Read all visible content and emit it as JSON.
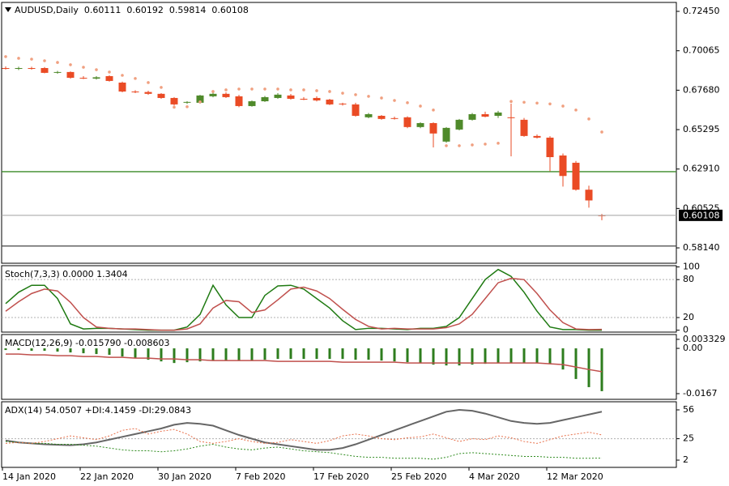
{
  "chart_data": [
    {
      "type": "candlestick",
      "title": "AUDUSD,Daily",
      "categories": [
        "14 Jan 2020",
        null,
        null,
        null,
        null,
        null,
        "22 Jan 2020",
        null,
        null,
        null,
        null,
        null,
        "30 Jan 2020",
        null,
        null,
        null,
        null,
        null,
        "7 Feb 2020",
        null,
        null,
        null,
        null,
        null,
        "17 Feb 2020",
        null,
        null,
        null,
        null,
        null,
        "25 Feb 2020",
        null,
        null,
        null,
        null,
        null,
        "4 Mar 2020",
        null,
        null,
        null,
        null,
        null,
        "12 Mar 2020",
        null,
        null,
        null,
        null
      ],
      "open": [
        0.6902,
        0.69,
        0.6902,
        0.6902,
        0.6876,
        0.6878,
        0.6843,
        0.6838,
        0.6853,
        0.6814,
        0.676,
        0.6757,
        0.6746,
        0.6721,
        0.6692,
        0.6692,
        0.6731,
        0.6746,
        0.6731,
        0.6672,
        0.6701,
        0.6721,
        0.6736,
        0.6716,
        0.6721,
        0.6711,
        0.6687,
        0.6682,
        0.6604,
        0.6613,
        0.6599,
        0.6604,
        0.6545,
        0.6569,
        0.6457,
        0.653,
        0.6589,
        0.6623,
        0.6613,
        0.6604,
        0.6589,
        0.6491,
        0.6481,
        0.6373,
        0.6329,
        0.6166,
        0.60111
      ],
      "high": [
        0.6912,
        0.691,
        0.691,
        0.6908,
        0.6885,
        0.6882,
        0.6853,
        0.6853,
        0.6858,
        0.682,
        0.6768,
        0.6765,
        0.675,
        0.6726,
        0.6702,
        0.674,
        0.676,
        0.6755,
        0.674,
        0.6706,
        0.6733,
        0.675,
        0.6745,
        0.6726,
        0.6731,
        0.6716,
        0.6692,
        0.6692,
        0.663,
        0.6618,
        0.6608,
        0.661,
        0.6574,
        0.6574,
        0.6545,
        0.6594,
        0.663,
        0.6638,
        0.6643,
        0.6687,
        0.66,
        0.65,
        0.649,
        0.6385,
        0.634,
        0.619,
        0.60192
      ],
      "low": [
        0.6893,
        0.689,
        0.6892,
        0.687,
        0.6868,
        0.6838,
        0.6835,
        0.6832,
        0.682,
        0.6755,
        0.675,
        0.674,
        0.6716,
        0.6675,
        0.6685,
        0.6687,
        0.6725,
        0.6721,
        0.6665,
        0.6668,
        0.6697,
        0.6716,
        0.6711,
        0.6708,
        0.67,
        0.6678,
        0.6675,
        0.6608,
        0.6598,
        0.6589,
        0.659,
        0.6538,
        0.6538,
        0.6422,
        0.645,
        0.6525,
        0.6584,
        0.6604,
        0.66,
        0.6368,
        0.6486,
        0.6476,
        0.6278,
        0.6185,
        0.616,
        0.6057,
        0.59814
      ],
      "close": [
        0.69,
        0.6902,
        0.6899,
        0.6873,
        0.6878,
        0.6843,
        0.6841,
        0.6846,
        0.6824,
        0.676,
        0.6757,
        0.6746,
        0.6721,
        0.6682,
        0.6697,
        0.6736,
        0.6746,
        0.6726,
        0.6672,
        0.6701,
        0.6726,
        0.6741,
        0.6716,
        0.6714,
        0.6706,
        0.6682,
        0.6684,
        0.6613,
        0.6623,
        0.6594,
        0.6596,
        0.6545,
        0.6569,
        0.6506,
        0.654,
        0.6589,
        0.6623,
        0.6608,
        0.6633,
        0.6599,
        0.6491,
        0.6481,
        0.6363,
        0.6249,
        0.6166,
        0.6101,
        0.60108
      ],
      "sar": [
        0.6971,
        0.6961,
        0.6956,
        0.6946,
        0.6936,
        0.6922,
        0.6907,
        0.6892,
        0.6878,
        0.6858,
        0.6839,
        0.6814,
        0.6785,
        0.6665,
        0.6668,
        0.6697,
        0.676,
        0.677,
        0.6775,
        0.6775,
        0.6775,
        0.6775,
        0.677,
        0.677,
        0.6765,
        0.676,
        0.675,
        0.6741,
        0.6731,
        0.6721,
        0.6706,
        0.6692,
        0.6672,
        0.6648,
        0.6432,
        0.6432,
        0.6437,
        0.6442,
        0.6447,
        0.67,
        0.6695,
        0.669,
        0.6685,
        0.6672,
        0.6648,
        0.6594,
        0.6515
      ],
      "up_color": "#4f8a2b",
      "down_color": "#ea4b25",
      "sar_color": "#f0a080",
      "hlines": [
        {
          "value": 0.6275,
          "color": "#3a8a28"
        },
        {
          "value": 0.5825,
          "color": "#444444"
        }
      ],
      "ylim": [
        0.5721,
        0.7299
      ],
      "yticks": [
        {
          "value": 0.7245,
          "label": "0.72450"
        },
        {
          "value": 0.70065,
          "label": "0.70065"
        },
        {
          "value": 0.6768,
          "label": "0.67680"
        },
        {
          "value": 0.65295,
          "label": "0.65295"
        },
        {
          "value": 0.6291,
          "label": "0.62910"
        },
        {
          "value": 0.60525,
          "label": "0.60525"
        },
        {
          "value": 0.5814,
          "label": "0.58140"
        }
      ]
    },
    {
      "type": "line",
      "title": "Stoch(7,3,3) 0.0000 1.3404",
      "series": [
        {
          "color": "#1f7a12",
          "width": 1.5,
          "dotted": false,
          "values": [
            42,
            60,
            71,
            71,
            50,
            10,
            2,
            3,
            3,
            2,
            1,
            0,
            0,
            0,
            5,
            25,
            71,
            40,
            20,
            20,
            55,
            70,
            71,
            65,
            50,
            35,
            15,
            1,
            3,
            3,
            2,
            1,
            3,
            3,
            6,
            20,
            50,
            80,
            96,
            85,
            60,
            30,
            5,
            1,
            1,
            0,
            0
          ]
        },
        {
          "color": "#c0504d",
          "width": 1.5,
          "dotted": false,
          "values": [
            30,
            45,
            58,
            65,
            62,
            44,
            20,
            5,
            3,
            2,
            2,
            1,
            0,
            0,
            2,
            10,
            35,
            47,
            45,
            28,
            32,
            48,
            65,
            68,
            62,
            50,
            33,
            17,
            6,
            2,
            3,
            2,
            2,
            2,
            4,
            10,
            25,
            50,
            75,
            82,
            80,
            58,
            32,
            12,
            2,
            1,
            1.3404
          ]
        }
      ],
      "levels": [
        80,
        20
      ],
      "ylim": [
        -3,
        102
      ],
      "yticks": [
        100,
        80,
        20,
        0
      ]
    },
    {
      "type": "bar",
      "title": "MACD(12,26,9) -0.015790 -0.008603",
      "series": [
        {
          "type": "bar",
          "color": "#2e7d1e",
          "values": [
            -0.0006,
            -0.0006,
            -0.0009,
            -0.0009,
            -0.0012,
            -0.0015,
            -0.0018,
            -0.0021,
            -0.0024,
            -0.003,
            -0.0036,
            -0.0042,
            -0.0048,
            -0.0054,
            -0.0051,
            -0.0048,
            -0.0045,
            -0.0045,
            -0.0045,
            -0.0045,
            -0.0042,
            -0.0039,
            -0.0039,
            -0.0039,
            -0.0039,
            -0.0039,
            -0.0039,
            -0.0042,
            -0.0042,
            -0.0045,
            -0.0048,
            -0.0051,
            -0.0054,
            -0.006,
            -0.0063,
            -0.0063,
            -0.006,
            -0.0057,
            -0.0054,
            -0.0054,
            -0.0054,
            -0.0054,
            -0.0057,
            -0.0078,
            -0.0113,
            -0.0143,
            -0.01579
          ]
        },
        {
          "type": "line",
          "color": "#c0504d",
          "values": [
            -0.0021,
            -0.0021,
            -0.0024,
            -0.0024,
            -0.0027,
            -0.0027,
            -0.003,
            -0.003,
            -0.0033,
            -0.0033,
            -0.0036,
            -0.0036,
            -0.0039,
            -0.0039,
            -0.0042,
            -0.0042,
            -0.0045,
            -0.0045,
            -0.0045,
            -0.0045,
            -0.0045,
            -0.0048,
            -0.0048,
            -0.0048,
            -0.0048,
            -0.0048,
            -0.0051,
            -0.0051,
            -0.0051,
            -0.0051,
            -0.0051,
            -0.0054,
            -0.0054,
            -0.0054,
            -0.0054,
            -0.0054,
            -0.0054,
            -0.0054,
            -0.0054,
            -0.0054,
            -0.0054,
            -0.0054,
            -0.0057,
            -0.006,
            -0.0069,
            -0.0078,
            -0.008603
          ]
        }
      ],
      "ylim": [
        -0.0188,
        0.0051
      ],
      "yticks": [
        0.003329,
        {
          "value": 0,
          "label": "0.00"
        },
        -0.0167
      ]
    },
    {
      "type": "line",
      "title": "ADX(14) 54.0507 +DI:4.1459 -DI:29.0843",
      "series": [
        {
          "color": "#666666",
          "width": 2,
          "dotted": false,
          "values": [
            23,
            21,
            20,
            19,
            18.5,
            18,
            19,
            21,
            24,
            27,
            30,
            33,
            36,
            40,
            42,
            41,
            39,
            34,
            29,
            25,
            21,
            19,
            17,
            15,
            13,
            13,
            15,
            19,
            24,
            29,
            34,
            39,
            44,
            49,
            54,
            56,
            55,
            52,
            48,
            44,
            42,
            41,
            42,
            45,
            48,
            51,
            54.0507
          ]
        },
        {
          "color": "#2e8b1e",
          "width": 1,
          "dotted": true,
          "values": [
            22,
            21,
            20,
            20,
            19,
            19,
            18,
            17,
            15,
            13,
            12,
            12,
            11,
            12,
            14,
            17,
            19,
            16,
            14,
            13,
            15,
            16,
            14,
            12,
            11,
            10,
            8,
            6,
            5,
            5,
            4,
            4,
            4,
            3,
            5,
            9,
            10,
            9,
            8,
            7,
            6,
            6,
            5,
            5,
            4,
            4,
            4.1459
          ]
        },
        {
          "color": "#e8704a",
          "width": 1,
          "dotted": true,
          "values": [
            20,
            21,
            20,
            22,
            25,
            28,
            26,
            24,
            28,
            34,
            36,
            30,
            33,
            35,
            30,
            22,
            20,
            22,
            25,
            22,
            20,
            21,
            24,
            22,
            20,
            23,
            28,
            30,
            28,
            25,
            24,
            26,
            27,
            30,
            26,
            22,
            25,
            24,
            28,
            26,
            22,
            20,
            24,
            28,
            30,
            32,
            29.0843
          ]
        }
      ],
      "levels": [
        25
      ],
      "ylim": [
        -5.8,
        64.7
      ],
      "yticks": [
        56,
        25,
        2
      ]
    }
  ]
}
